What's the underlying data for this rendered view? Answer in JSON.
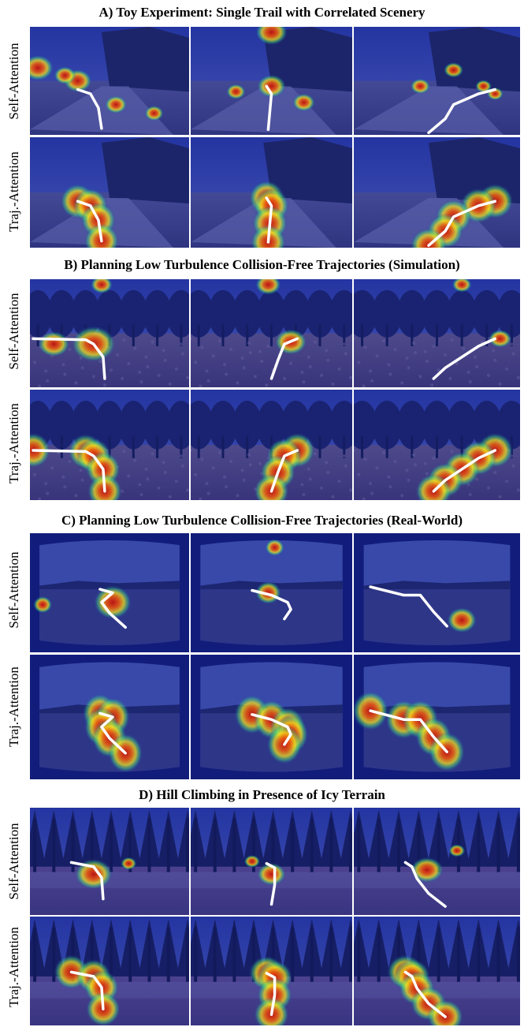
{
  "sections": [
    {
      "title": "A) Toy Experiment: Single Trail with Correlated Scenery",
      "rows": [
        "Self-Attention",
        "Traj.-Attention"
      ]
    },
    {
      "title": "B) Planning Low Turbulence Collision-Free Trajectories (Simulation)",
      "rows": [
        "Self-Attention",
        "Traj.-Attention"
      ]
    },
    {
      "title": "C) Planning Low Turbulence Collision-Free Trajectories (Real-World)",
      "rows": [
        "Self-Attention",
        "Traj.-Attention"
      ]
    },
    {
      "title": "D) Hill Climbing in Presence of Icy Terrain",
      "rows": [
        "Self-Attention",
        "Traj.-Attention"
      ]
    }
  ],
  "colors": {
    "heat_low": "#1a2a9c",
    "heat_mid": "#f0e020",
    "heat_high": "#c01010",
    "trajectory": "#ffffff"
  }
}
